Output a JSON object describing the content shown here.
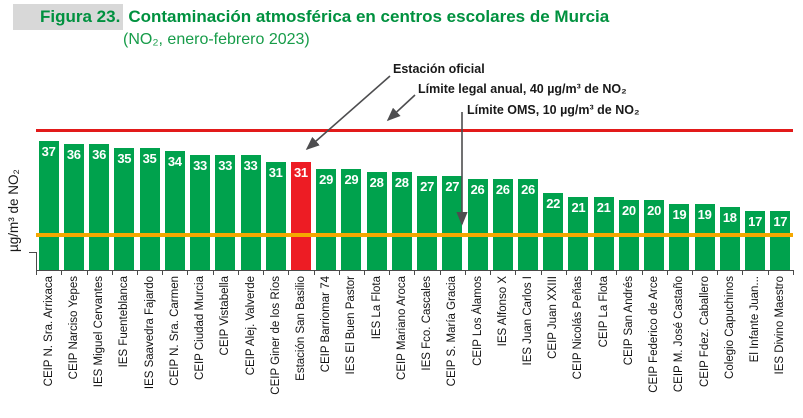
{
  "figure": {
    "badge": "Figura 23.",
    "title": "Contaminación atmosférica en centros escolares de Murcia",
    "subtitle": "(NO₂, enero-febrero 2023)"
  },
  "chart_data": {
    "type": "bar",
    "title": "Contaminación atmosférica en centros escolares de Murcia (NO₂, enero-febrero 2023)",
    "ylabel": "µg/m³ de NO₂",
    "xlabel": "",
    "ylim": [
      0,
      48
    ],
    "grid": false,
    "categories": [
      "CEIP N. Sra. Arrixaca",
      "CEIP Narciso Yepes",
      "IES Miguel Cervantes",
      "IES Fuenteblanca",
      "IES Saavedra Fajardo",
      "CEIP N. Sra. Carmen",
      "CEIP Ciudad Murcia",
      "CEIP Vistabella",
      "CEIP Alej. Valverde",
      "CEIP Giner de los Ríos",
      "Estación San Basilio",
      "CEIP Barriomar 74",
      "IES El Buen Pastor",
      "IES La Flota",
      "CEIP Mariano Aroca",
      "IES Fco. Cascales",
      "CEIP S. María Gracia",
      "CEIP Los Álamos",
      "IES Alfonso X",
      "IES Juan Carlos I",
      "CEIP Juan XXIII",
      "CEIP Nicolás Peñas",
      "CEIP La Flota",
      "CEIP San Andrés",
      "CEIP Federico de Arce",
      "CEIP M. José Castaño",
      "CEIP Fdez. Caballero",
      "Colegio Capuchinos",
      "El Infante Juan...",
      "IES Divino Maestro"
    ],
    "values": [
      37,
      36,
      36,
      35,
      35,
      34,
      33,
      33,
      33,
      31,
      31,
      29,
      29,
      28,
      28,
      27,
      27,
      26,
      26,
      26,
      22,
      21,
      21,
      20,
      20,
      19,
      19,
      18,
      17,
      17
    ],
    "highlight_index": 10,
    "highlight_category": "Estación San Basilio",
    "colors": {
      "bar": "#00a24d",
      "highlight_bar": "#ed1c24",
      "legal_line": "#e21a1a",
      "oms_line": "#f5a800",
      "title_green": "#00913f",
      "badge_gray": "#d8d8d8",
      "arrow_gray": "#4d4d4f"
    },
    "reference_lines": [
      {
        "label": "Límite legal anual, 40 µg/m³ de NO₂",
        "value": 40,
        "color": "#e21a1a"
      },
      {
        "label": "Límite OMS, 10 µg/m³ de NO₂",
        "value": 10,
        "color": "#f5a800"
      }
    ],
    "annotations": [
      {
        "text": "Estación oficial",
        "target_category": "Estación San Basilio",
        "target_value": 31
      }
    ]
  }
}
